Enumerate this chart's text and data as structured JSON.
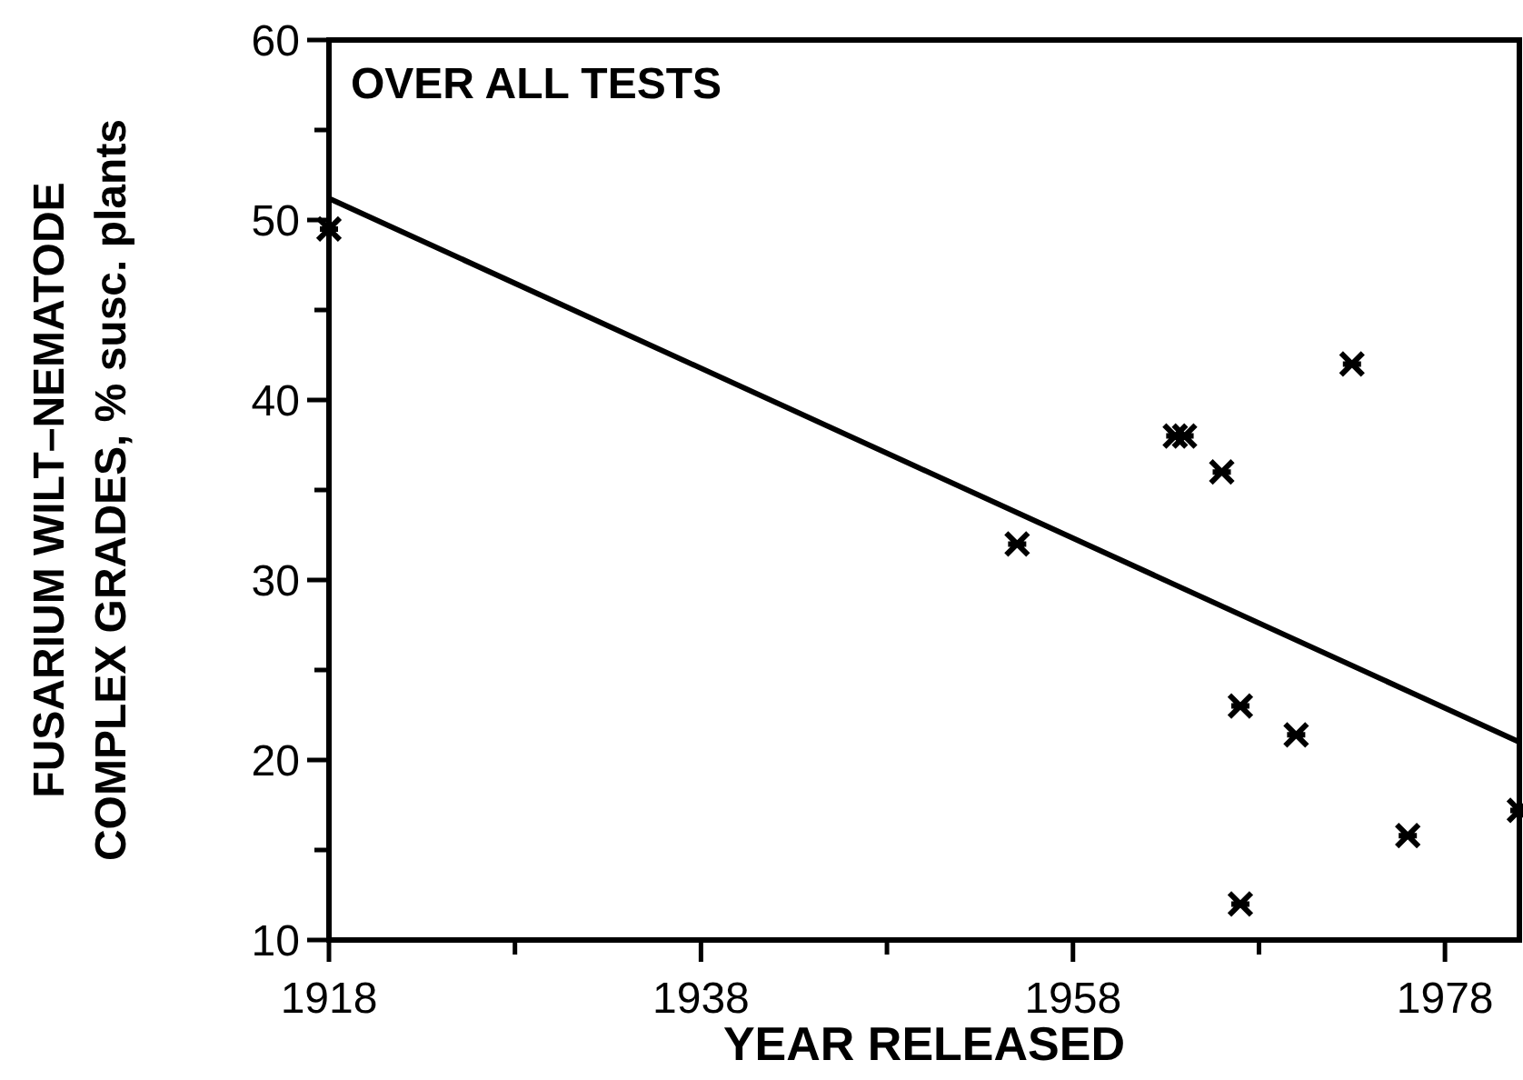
{
  "chart_data": {
    "type": "scatter",
    "title": "OVER ALL TESTS",
    "xlabel": "YEAR RELEASED",
    "ylabel": "FUSARIUM WILT–NEMATODE\nCOMPLEX GRADES, % susc. plants",
    "xlim": [
      1918,
      1982
    ],
    "xticks": [
      1918,
      {
        "value": 1928,
        "label": null
      },
      1938,
      {
        "value": 1948,
        "label": null
      },
      1958,
      {
        "value": 1968,
        "label": null
      },
      1978
    ],
    "ylim": [
      10,
      60
    ],
    "yticks": [
      10,
      {
        "value": 15,
        "label": null
      },
      20,
      {
        "value": 25,
        "label": null
      },
      30,
      {
        "value": 35,
        "label": null
      },
      40,
      {
        "value": 45,
        "label": null
      },
      50,
      {
        "value": 55,
        "label": null
      },
      60
    ],
    "grid": false,
    "series": [
      {
        "marker": "cross",
        "color": "#000000",
        "x": [
          1918,
          1955,
          1963.5,
          1964,
          1966,
          1967,
          1967,
          1970,
          1973,
          1976,
          1982
        ],
        "values": [
          49.5,
          32,
          38,
          38,
          36,
          23,
          12,
          21.4,
          42,
          15.8,
          17.2
        ]
      },
      {
        "type": "line",
        "marker": "none",
        "color": "#000000",
        "line_style": "solid",
        "x": [
          1918,
          1982
        ],
        "values": [
          51.2,
          21.0
        ]
      }
    ]
  }
}
